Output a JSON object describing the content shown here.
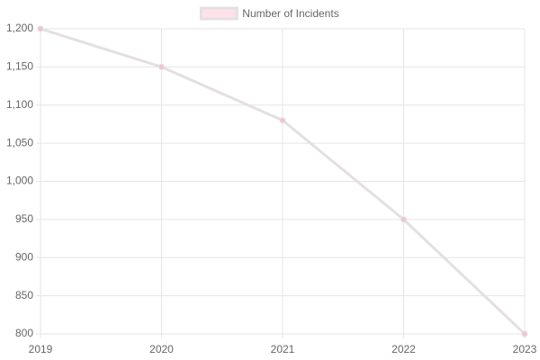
{
  "chart_data": {
    "type": "line",
    "categories": [
      "2019",
      "2020",
      "2021",
      "2022",
      "2023"
    ],
    "series": [
      {
        "name": "Number of Incidents",
        "color": "#e4dfe1",
        "point_color": "#f3c3ce",
        "values": [
          1200,
          1150,
          1080,
          950,
          800
        ]
      }
    ],
    "ylim": [
      800,
      1200
    ],
    "yticks": [
      800,
      850,
      900,
      950,
      {
        "value": 1000,
        "label": "1,000"
      },
      {
        "value": 1050,
        "label": "1,050"
      },
      {
        "value": 1100,
        "label": "1,100"
      },
      {
        "value": 1150,
        "label": "1,150"
      },
      {
        "value": 1200,
        "label": "1,200"
      }
    ],
    "grid": true,
    "legend": "top"
  }
}
